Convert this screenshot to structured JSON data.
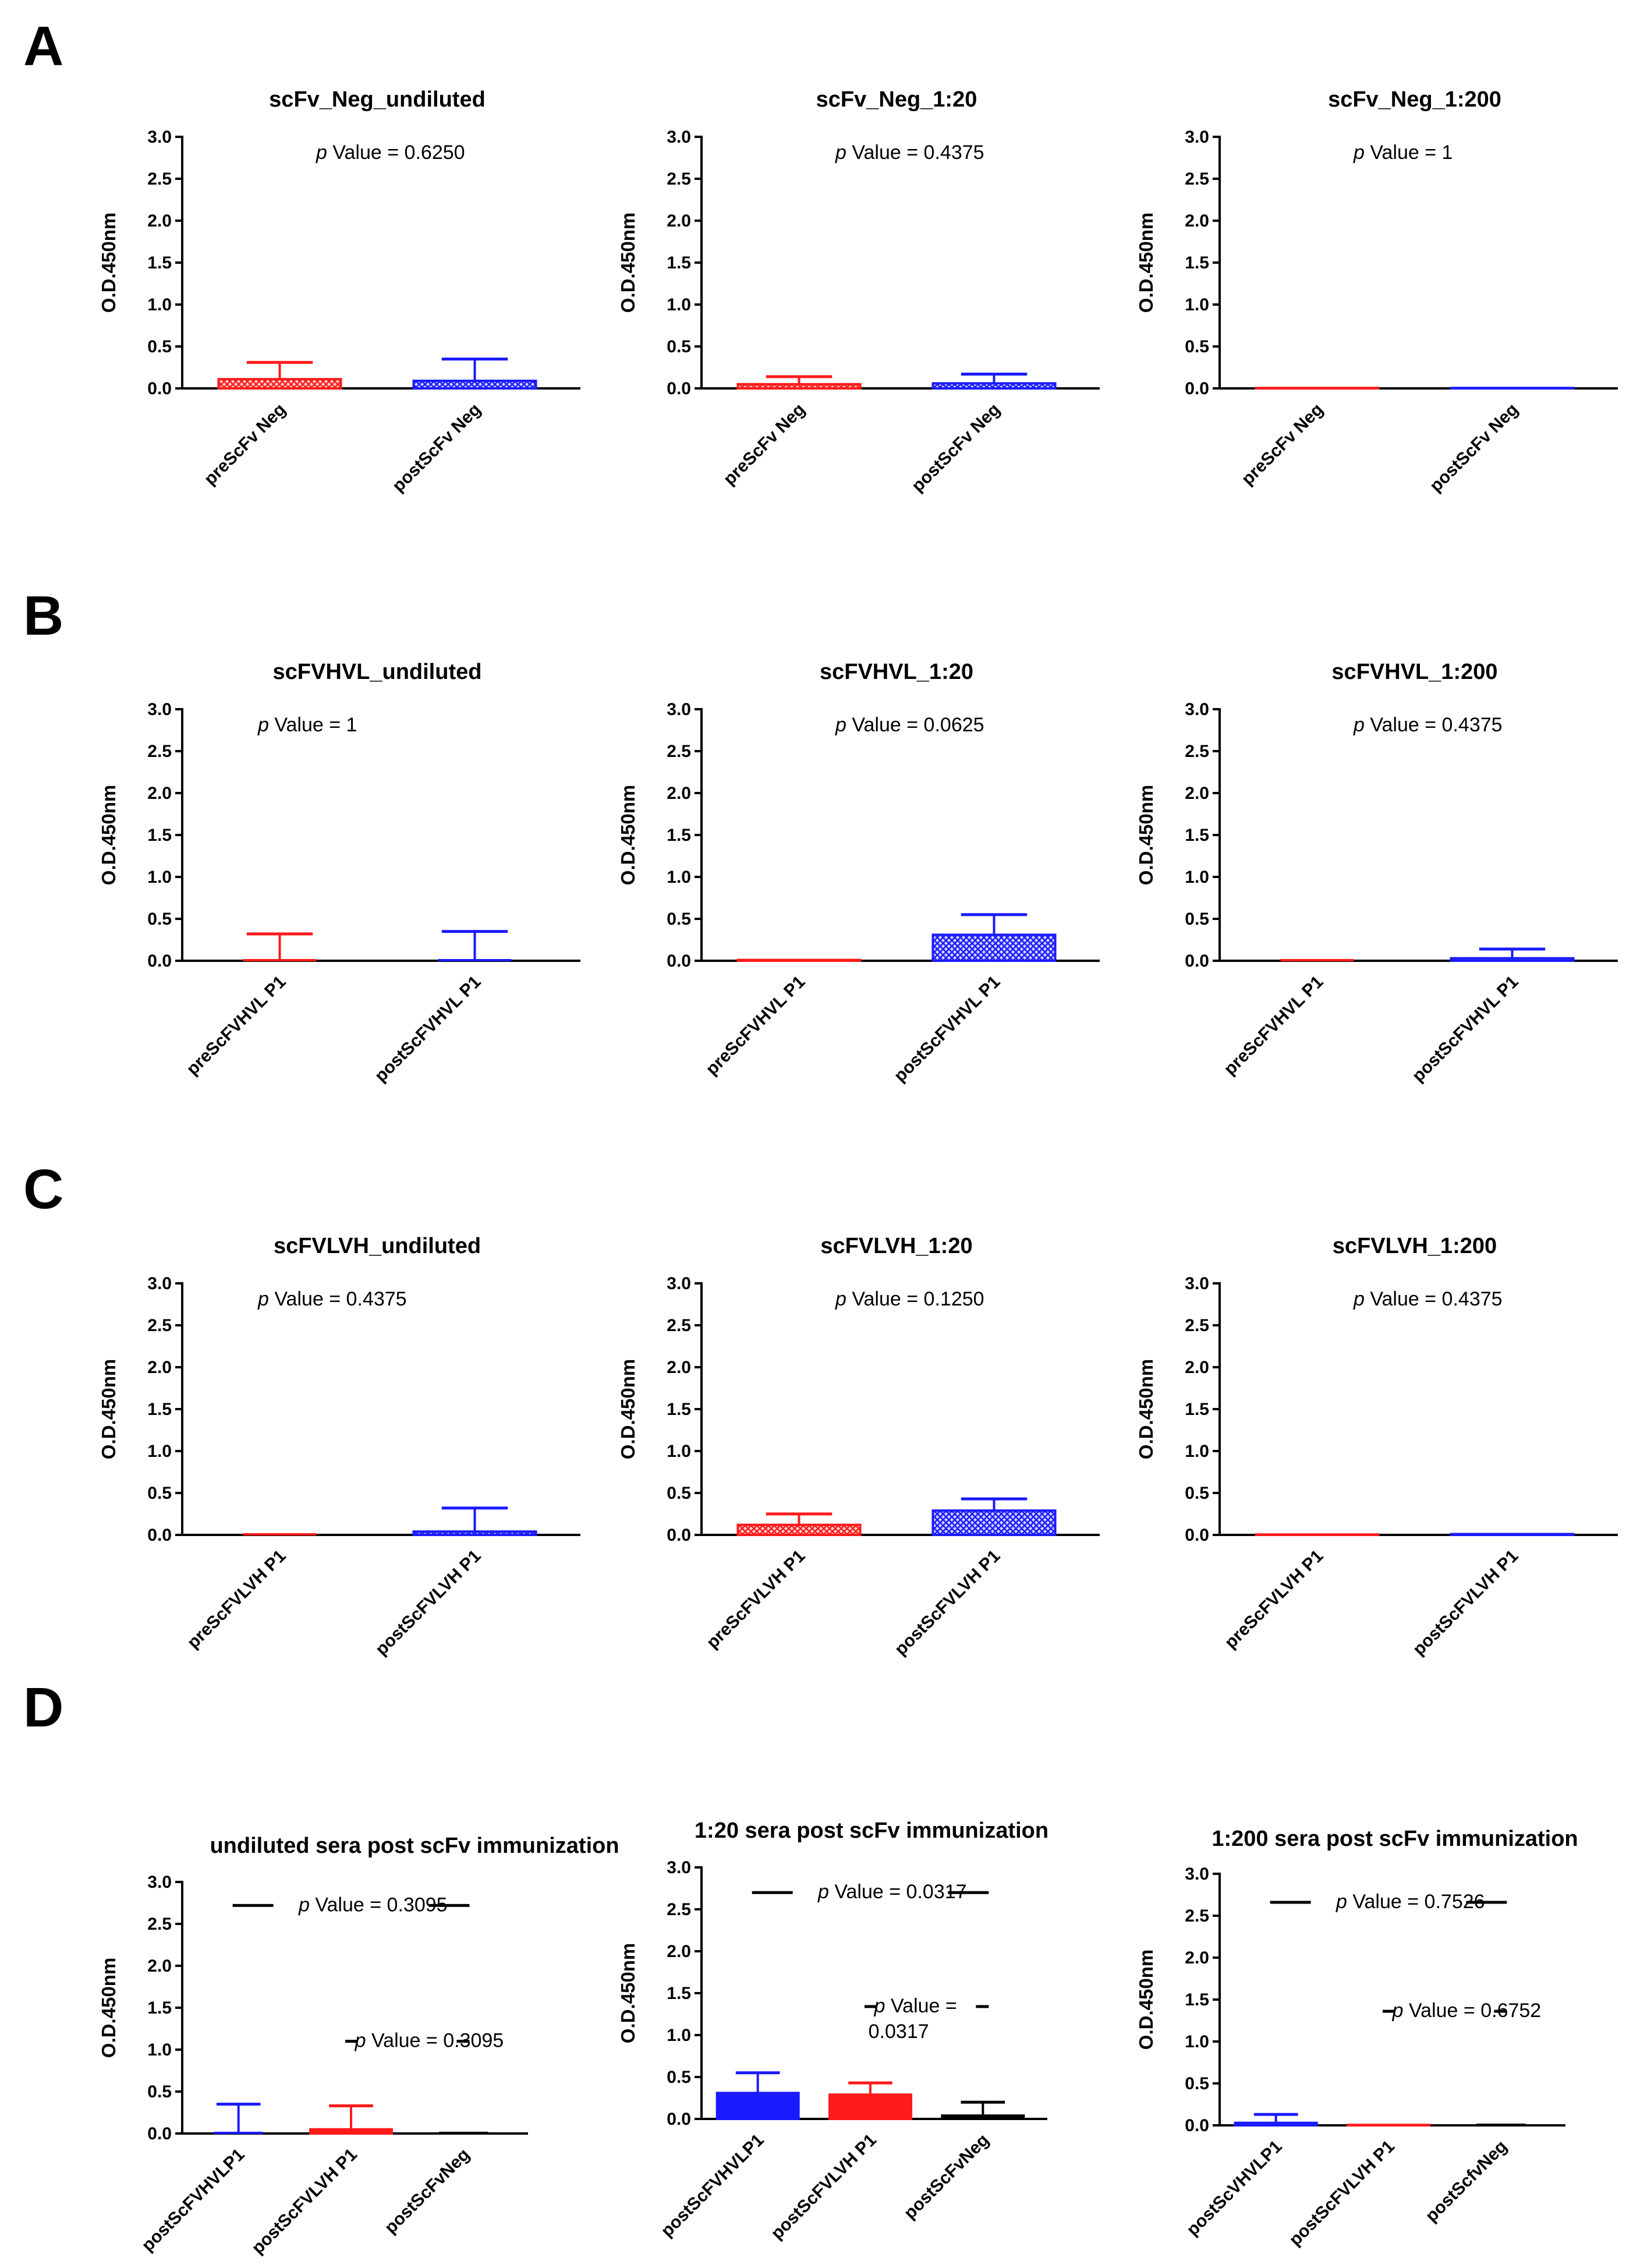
{
  "panel_letters": [
    "A",
    "B",
    "C",
    "D"
  ],
  "colors": {
    "red": "#ff1a1a",
    "blue": "#1a1aff",
    "black": "#000000"
  },
  "chart_data": [
    {
      "type": "bar",
      "title": "scFv_Neg_undiluted",
      "ylabel": "O.D.450nm",
      "ylim": [
        0,
        3.0
      ],
      "yticks": [
        "0.0",
        "0.5",
        "1.0",
        "1.5",
        "2.0",
        "2.5",
        "3.0"
      ],
      "categories": [
        "preScFv Neg",
        "postScFv Neg"
      ],
      "values": [
        0.11,
        0.09
      ],
      "error": [
        0.2,
        0.26
      ],
      "colors": [
        "red",
        "blue"
      ],
      "hatched": true,
      "annotations": [
        {
          "text": "Value = 0.6250"
        }
      ]
    },
    {
      "type": "bar",
      "title": "scFv_Neg_1:20",
      "ylabel": "O.D.450nm",
      "ylim": [
        0,
        3.0
      ],
      "yticks": [
        "0.0",
        "0.5",
        "1.0",
        "1.5",
        "2.0",
        "2.5",
        "3.0"
      ],
      "categories": [
        "preScFv Neg",
        "postScFv Neg"
      ],
      "values": [
        0.05,
        0.06
      ],
      "error": [
        0.09,
        0.11
      ],
      "colors": [
        "red",
        "blue"
      ],
      "hatched": true,
      "annotations": [
        {
          "text": "Value = 0.4375"
        }
      ]
    },
    {
      "type": "bar",
      "title": "scFv_Neg_1:200",
      "ylabel": "O.D.450nm",
      "ylim": [
        0,
        3.0
      ],
      "yticks": [
        "0.0",
        "0.5",
        "1.0",
        "1.5",
        "2.0",
        "2.5",
        "3.0"
      ],
      "categories": [
        "preScFv Neg",
        "postScFv Neg"
      ],
      "values": [
        0.005,
        0.005
      ],
      "error": [
        0,
        0
      ],
      "colors": [
        "red",
        "blue"
      ],
      "hatched": true,
      "annotations": [
        {
          "text": "Value = 1"
        }
      ]
    },
    {
      "type": "bar",
      "title": "scFVHVL_undiluted",
      "ylabel": "O.D.450nm",
      "ylim": [
        0,
        3.0
      ],
      "yticks": [
        "0.0",
        "0.5",
        "1.0",
        "1.5",
        "2.0",
        "2.5",
        "3.0"
      ],
      "categories": [
        "preScFVHVL P1",
        "postScFVHVL P1"
      ],
      "values": [
        0,
        0
      ],
      "error": [
        0.32,
        0.35
      ],
      "colors": [
        "red",
        "blue"
      ],
      "hatched": true,
      "annotations": [
        {
          "text": "Value = 1"
        }
      ]
    },
    {
      "type": "bar",
      "title": "scFVHVL_1:20",
      "ylabel": "O.D.450nm",
      "ylim": [
        0,
        3.0
      ],
      "yticks": [
        "0.0",
        "0.5",
        "1.0",
        "1.5",
        "2.0",
        "2.5",
        "3.0"
      ],
      "categories": [
        "preScFVHVL P1",
        "postScFVHVL P1"
      ],
      "values": [
        0.01,
        0.31
      ],
      "error": [
        0,
        0.24
      ],
      "colors": [
        "red",
        "blue"
      ],
      "hatched": true,
      "annotations": [
        {
          "text": "Value = 0.0625"
        }
      ]
    },
    {
      "type": "bar",
      "title": "scFVHVL_1:200",
      "ylabel": "O.D.450nm",
      "ylim": [
        0,
        3.0
      ],
      "yticks": [
        "0.0",
        "0.5",
        "1.0",
        "1.5",
        "2.0",
        "2.5",
        "3.0"
      ],
      "categories": [
        "preScFVHVL P1",
        "postScFVHVL P1"
      ],
      "values": [
        0,
        0.03
      ],
      "error": [
        0,
        0.11
      ],
      "colors": [
        "red",
        "blue"
      ],
      "hatched": true,
      "annotations": [
        {
          "text": "Value = 0.4375"
        }
      ]
    },
    {
      "type": "bar",
      "title": "scFVLVH_undiluted",
      "ylabel": "O.D.450nm",
      "ylim": [
        0,
        3.0
      ],
      "yticks": [
        "0.0",
        "0.5",
        "1.0",
        "1.5",
        "2.0",
        "2.5",
        "3.0"
      ],
      "categories": [
        "preScFVLVH P1",
        "postScFVLVH P1"
      ],
      "values": [
        0,
        0.04
      ],
      "error": [
        0,
        0.28
      ],
      "colors": [
        "red",
        "blue"
      ],
      "hatched": true,
      "annotations": [
        {
          "text": "Value = 0.4375"
        }
      ]
    },
    {
      "type": "bar",
      "title": "scFVLVH_1:20",
      "ylabel": "O.D.450nm",
      "ylim": [
        0,
        3.0
      ],
      "yticks": [
        "0.0",
        "0.5",
        "1.0",
        "1.5",
        "2.0",
        "2.5",
        "3.0"
      ],
      "categories": [
        "preScFVLVH P1",
        "postScFVLVH P1"
      ],
      "values": [
        0.12,
        0.29
      ],
      "error": [
        0.13,
        0.14
      ],
      "colors": [
        "red",
        "blue"
      ],
      "hatched": true,
      "annotations": [
        {
          "text": "Value = 0.1250"
        }
      ]
    },
    {
      "type": "bar",
      "title": "scFVLVH_1:200",
      "ylabel": "O.D.450nm",
      "ylim": [
        0,
        3.0
      ],
      "yticks": [
        "0.0",
        "0.5",
        "1.0",
        "1.5",
        "2.0",
        "2.5",
        "3.0"
      ],
      "categories": [
        "preScFVLVH P1",
        "postScFVLVH P1"
      ],
      "values": [
        0.005,
        0.01
      ],
      "error": [
        0,
        0
      ],
      "colors": [
        "red",
        "blue"
      ],
      "hatched": true,
      "annotations": [
        {
          "text": "Value = 0.4375"
        }
      ]
    },
    {
      "type": "bar",
      "title": "undiluted sera post scFv immunization",
      "ylabel": "O.D.450nm",
      "ylim": [
        0,
        3.0
      ],
      "yticks": [
        "0.0",
        "0.5",
        "1.0",
        "1.5",
        "2.0",
        "2.5",
        "3.0"
      ],
      "categories": [
        "postScFVHVLP1",
        "postScFVLVH P1",
        "postScFvNeg"
      ],
      "values": [
        0,
        0.05,
        0
      ],
      "error": [
        0.35,
        0.28,
        0
      ],
      "colors": [
        "blue",
        "red",
        "black"
      ],
      "hatched": false,
      "annotations": [
        {
          "text": "Value = 0.3095",
          "bracket_y": 2.72,
          "from": 0,
          "to": 2
        },
        {
          "text": "Value = 0.3095",
          "bracket_y": 1.1,
          "from": 1,
          "to": 2
        }
      ]
    },
    {
      "type": "bar",
      "title": "1:20 sera post scFv immunization",
      "ylabel": "O.D.450nm",
      "ylim": [
        0,
        3.0
      ],
      "yticks": [
        "0.0",
        "0.5",
        "1.0",
        "1.5",
        "2.0",
        "2.5",
        "3.0"
      ],
      "categories": [
        "postScFVHVLP1",
        "postScFVLVH P1",
        "postScFvNeg"
      ],
      "values": [
        0.31,
        0.29,
        0.04
      ],
      "error": [
        0.24,
        0.14,
        0.16
      ],
      "colors": [
        "blue",
        "red",
        "black"
      ],
      "hatched": false,
      "annotations": [
        {
          "text": "Value = 0.0317",
          "bracket_y": 2.7,
          "from": 0,
          "to": 2
        },
        {
          "text": "Value =",
          "text2": "0.0317",
          "bracket_y": 1.34,
          "from": 1,
          "to": 2
        }
      ]
    },
    {
      "type": "bar",
      "title": "1:200 sera post scFv immunization",
      "ylabel": "O.D.450nm",
      "ylim": [
        0,
        3.0
      ],
      "yticks": [
        "0.0",
        "0.5",
        "1.0",
        "1.5",
        "2.0",
        "2.5",
        "3.0"
      ],
      "categories": [
        "postScVHVLP1",
        "postScFVLVH P1",
        "postScfvNeg"
      ],
      "values": [
        0.03,
        0.005,
        0
      ],
      "error": [
        0.1,
        0,
        0
      ],
      "colors": [
        "blue",
        "red",
        "black"
      ],
      "hatched": false,
      "annotations": [
        {
          "text": "Value = 0.7526",
          "bracket_y": 2.66,
          "from": 0,
          "to": 2
        },
        {
          "text": "Value = 0.6752",
          "bracket_y": 1.36,
          "from": 1,
          "to": 2
        }
      ]
    }
  ]
}
